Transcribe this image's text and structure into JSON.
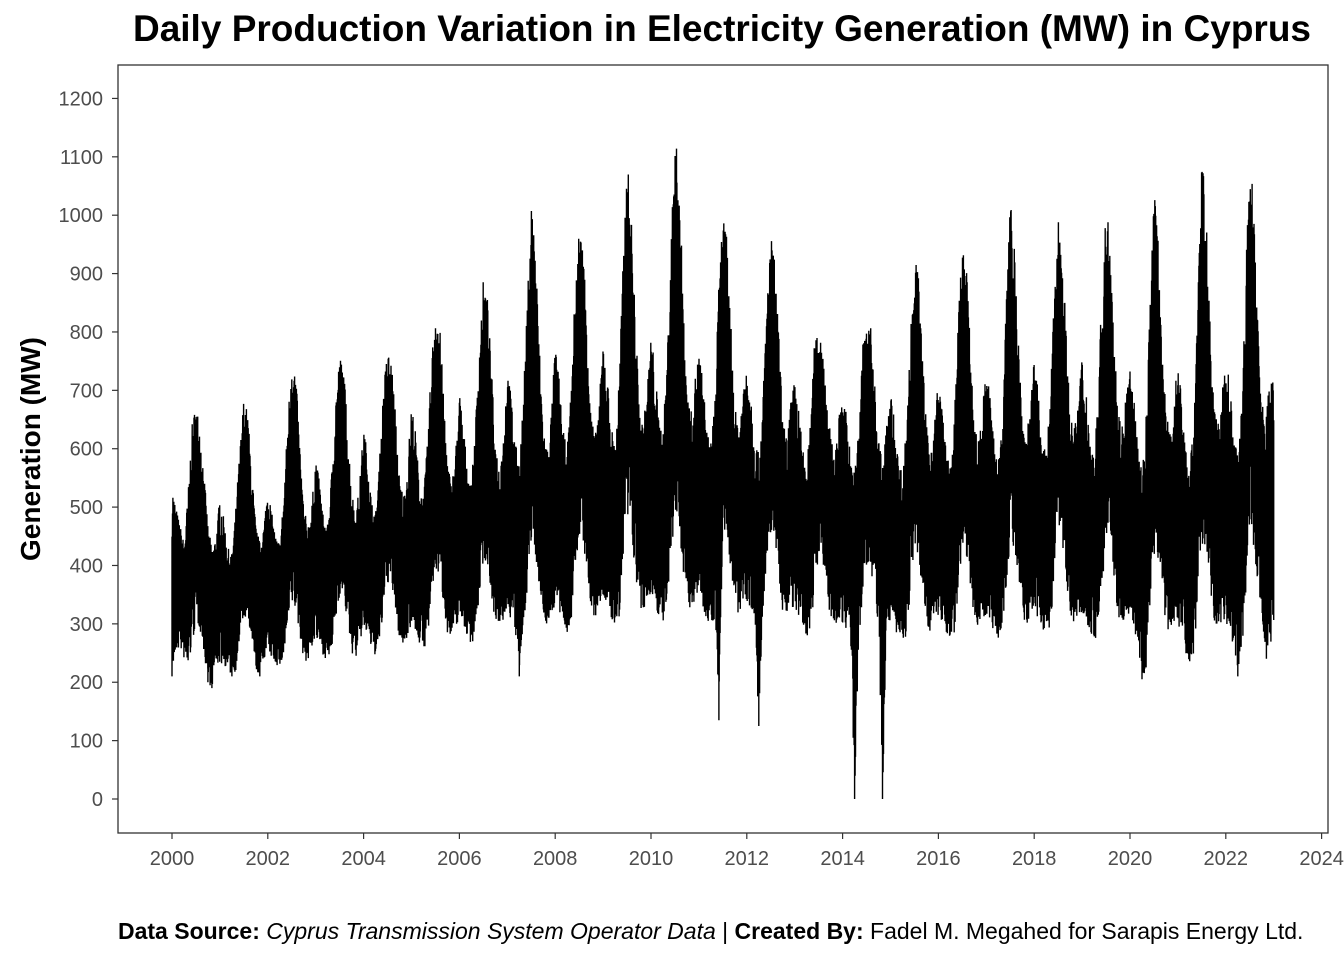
{
  "chart_data": {
    "type": "line",
    "title": "Daily Production Variation in Electricity Generation (MW) in Cyprus",
    "xlabel": "",
    "ylabel": "Generation (MW)",
    "xlim": [
      2000,
      2024
    ],
    "ylim": [
      -55,
      1260
    ],
    "x_ticks": [
      "2000",
      "2002",
      "2004",
      "2006",
      "2008",
      "2010",
      "2012",
      "2014",
      "2016",
      "2018",
      "2020",
      "2022",
      "2024"
    ],
    "y_ticks": [
      "0",
      "100",
      "200",
      "300",
      "400",
      "500",
      "600",
      "700",
      "800",
      "900",
      "1000",
      "1100",
      "1200"
    ],
    "series_color": "#000000",
    "data_start_year": 2000.0,
    "data_end_year": 2023.0,
    "series": [
      {
        "resolution": "monthly envelope",
        "x": [
          2000.0,
          2000.083,
          2000.167,
          2000.25,
          2000.333,
          2000.417,
          2000.5,
          2000.583,
          2000.667,
          2000.75,
          2000.833,
          2000.917,
          2001.0,
          2001.083,
          2001.167,
          2001.25,
          2001.333,
          2001.417,
          2001.5,
          2001.583,
          2001.667,
          2001.75,
          2001.833,
          2001.917,
          2002.0,
          2002.083,
          2002.167,
          2002.25,
          2002.333,
          2002.417,
          2002.5,
          2002.583,
          2002.667,
          2002.75,
          2002.833,
          2002.917,
          2003.0,
          2003.083,
          2003.167,
          2003.25,
          2003.333,
          2003.417,
          2003.5,
          2003.583,
          2003.667,
          2003.75,
          2003.833,
          2003.917,
          2004.0,
          2004.083,
          2004.167,
          2004.25,
          2004.333,
          2004.417,
          2004.5,
          2004.583,
          2004.667,
          2004.75,
          2004.833,
          2004.917,
          2005.0,
          2005.083,
          2005.167,
          2005.25,
          2005.333,
          2005.417,
          2005.5,
          2005.583,
          2005.667,
          2005.75,
          2005.833,
          2005.917,
          2006.0,
          2006.083,
          2006.167,
          2006.25,
          2006.333,
          2006.417,
          2006.5,
          2006.583,
          2006.667,
          2006.75,
          2006.833,
          2006.917,
          2007.0,
          2007.083,
          2007.167,
          2007.25,
          2007.333,
          2007.417,
          2007.5,
          2007.583,
          2007.667,
          2007.75,
          2007.833,
          2007.917,
          2008.0,
          2008.083,
          2008.167,
          2008.25,
          2008.333,
          2008.417,
          2008.5,
          2008.583,
          2008.667,
          2008.75,
          2008.833,
          2008.917,
          2009.0,
          2009.083,
          2009.167,
          2009.25,
          2009.333,
          2009.417,
          2009.5,
          2009.583,
          2009.667,
          2009.75,
          2009.833,
          2009.917,
          2010.0,
          2010.083,
          2010.167,
          2010.25,
          2010.333,
          2010.417,
          2010.5,
          2010.583,
          2010.667,
          2010.75,
          2010.833,
          2010.917,
          2011.0,
          2011.083,
          2011.167,
          2011.25,
          2011.333,
          2011.417,
          2011.5,
          2011.583,
          2011.667,
          2011.75,
          2011.833,
          2011.917,
          2012.0,
          2012.083,
          2012.167,
          2012.25,
          2012.333,
          2012.417,
          2012.5,
          2012.583,
          2012.667,
          2012.75,
          2012.833,
          2012.917,
          2013.0,
          2013.083,
          2013.167,
          2013.25,
          2013.333,
          2013.417,
          2013.5,
          2013.583,
          2013.667,
          2013.75,
          2013.833,
          2013.917,
          2014.0,
          2014.083,
          2014.167,
          2014.25,
          2014.333,
          2014.417,
          2014.5,
          2014.583,
          2014.667,
          2014.75,
          2014.833,
          2014.917,
          2015.0,
          2015.083,
          2015.167,
          2015.25,
          2015.333,
          2015.417,
          2015.5,
          2015.583,
          2015.667,
          2015.75,
          2015.833,
          2015.917,
          2016.0,
          2016.083,
          2016.167,
          2016.25,
          2016.333,
          2016.417,
          2016.5,
          2016.583,
          2016.667,
          2016.75,
          2016.833,
          2016.917,
          2017.0,
          2017.083,
          2017.167,
          2017.25,
          2017.333,
          2017.417,
          2017.5,
          2017.583,
          2017.667,
          2017.75,
          2017.833,
          2017.917,
          2018.0,
          2018.083,
          2018.167,
          2018.25,
          2018.333,
          2018.417,
          2018.5,
          2018.583,
          2018.667,
          2018.75,
          2018.833,
          2018.917,
          2019.0,
          2019.083,
          2019.167,
          2019.25,
          2019.333,
          2019.417,
          2019.5,
          2019.583,
          2019.667,
          2019.75,
          2019.833,
          2019.917,
          2020.0,
          2020.083,
          2020.167,
          2020.25,
          2020.333,
          2020.417,
          2020.5,
          2020.583,
          2020.667,
          2020.75,
          2020.833,
          2020.917,
          2021.0,
          2021.083,
          2021.167,
          2021.25,
          2021.333,
          2021.417,
          2021.5,
          2021.583,
          2021.667,
          2021.75,
          2021.833,
          2021.917,
          2022.0,
          2022.083,
          2022.167,
          2022.25,
          2022.333,
          2022.417,
          2022.5,
          2022.583,
          2022.667,
          2022.75,
          2022.833,
          2022.917,
          2023.0
        ],
        "max": [
          540,
          500,
          470,
          440,
          520,
          640,
          680,
          640,
          560,
          470,
          430,
          450,
          520,
          480,
          430,
          420,
          500,
          600,
          690,
          660,
          560,
          470,
          440,
          470,
          540,
          490,
          450,
          440,
          520,
          650,
          770,
          730,
          610,
          500,
          470,
          500,
          590,
          540,
          480,
          470,
          560,
          690,
          760,
          740,
          640,
          530,
          490,
          540,
          640,
          590,
          510,
          490,
          580,
          710,
          770,
          750,
          660,
          550,
          520,
          570,
          680,
          630,
          540,
          520,
          610,
          750,
          850,
          820,
          700,
          580,
          540,
          590,
          700,
          640,
          570,
          540,
          640,
          780,
          890,
          860,
          740,
          610,
          570,
          620,
          740,
          690,
          610,
          580,
          680,
          850,
          1030,
          960,
          780,
          640,
          600,
          660,
          780,
          720,
          630,
          600,
          700,
          880,
          980,
          950,
          820,
          660,
          620,
          680,
          790,
          730,
          640,
          610,
          720,
          920,
          1100,
          1010,
          840,
          680,
          640,
          700,
          800,
          740,
          650,
          630,
          750,
          960,
          1140,
          1080,
          880,
          700,
          660,
          720,
          770,
          720,
          630,
          610,
          700,
          880,
          1010,
          960,
          820,
          670,
          640,
          700,
          760,
          700,
          620,
          590,
          680,
          850,
          970,
          920,
          800,
          650,
          620,
          680,
          720,
          670,
          600,
          570,
          650,
          790,
          810,
          780,
          700,
          620,
          590,
          650,
          700,
          660,
          590,
          560,
          640,
          780,
          830,
          810,
          720,
          620,
          580,
          640,
          700,
          650,
          580,
          560,
          640,
          800,
          930,
          900,
          760,
          640,
          600,
          650,
          720,
          670,
          590,
          570,
          650,
          830,
          960,
          920,
          770,
          650,
          610,
          670,
          740,
          690,
          610,
          580,
          670,
          860,
          1020,
          980,
          800,
          660,
          620,
          680,
          750,
          700,
          620,
          590,
          680,
          870,
          1000,
          960,
          800,
          660,
          630,
          690,
          760,
          710,
          620,
          590,
          690,
          880,
          1010,
          980,
          810,
          670,
          640,
          700,
          740,
          690,
          600,
          560,
          650,
          850,
          1040,
          980,
          800,
          660,
          630,
          690,
          750,
          700,
          600,
          570,
          660,
          870,
          1100,
          1020,
          820,
          670,
          640,
          700,
          760,
          710,
          620,
          590,
          680,
          900,
          1110,
          1030,
          830,
          680,
          660,
          720,
          740
        ],
        "min": [
          210,
          250,
          260,
          240,
          220,
          260,
          300,
          290,
          250,
          200,
          190,
          230,
          230,
          230,
          220,
          210,
          220,
          270,
          310,
          300,
          260,
          220,
          210,
          240,
          250,
          240,
          230,
          225,
          240,
          290,
          330,
          320,
          280,
          240,
          230,
          260,
          270,
          260,
          245,
          235,
          250,
          300,
          350,
          340,
          300,
          250,
          240,
          265,
          290,
          275,
          255,
          245,
          260,
          320,
          370,
          360,
          320,
          270,
          260,
          280,
          300,
          285,
          265,
          255,
          270,
          335,
          390,
          380,
          335,
          285,
          270,
          290,
          310,
          300,
          275,
          265,
          280,
          345,
          410,
          400,
          350,
          300,
          285,
          305,
          320,
          305,
          285,
          210,
          290,
          360,
          430,
          420,
          365,
          310,
          295,
          315,
          330,
          315,
          295,
          285,
          300,
          380,
          450,
          440,
          380,
          320,
          305,
          330,
          345,
          330,
          305,
          295,
          310,
          395,
          470,
          455,
          390,
          330,
          310,
          340,
          350,
          335,
          310,
          300,
          315,
          400,
          475,
          460,
          395,
          335,
          315,
          345,
          345,
          330,
          305,
          295,
          310,
          135,
          465,
          450,
          385,
          330,
          310,
          340,
          340,
          325,
          300,
          125,
          305,
          390,
          455,
          440,
          380,
          320,
          300,
          335,
          320,
          305,
          285,
          275,
          290,
          360,
          420,
          410,
          360,
          305,
          285,
          310,
          300,
          290,
          270,
          0,
          255,
          340,
          400,
          390,
          345,
          290,
          0,
          295,
          300,
          290,
          275,
          265,
          280,
          350,
          420,
          410,
          360,
          305,
          285,
          305,
          310,
          300,
          280,
          270,
          285,
          360,
          430,
          420,
          365,
          310,
          290,
          310,
          315,
          300,
          285,
          275,
          290,
          365,
          440,
          425,
          370,
          315,
          295,
          315,
          320,
          305,
          290,
          280,
          295,
          370,
          445,
          430,
          375,
          320,
          300,
          320,
          320,
          305,
          285,
          260,
          290,
          365,
          440,
          425,
          370,
          315,
          295,
          320,
          310,
          290,
          260,
          205,
          220,
          320,
          420,
          410,
          355,
          300,
          275,
          300,
          300,
          280,
          250,
          235,
          250,
          340,
          440,
          425,
          365,
          305,
          285,
          305,
          300,
          285,
          260,
          210,
          250,
          345,
          450,
          430,
          370,
          310,
          230,
          260,
          250
        ]
      }
    ]
  },
  "caption": {
    "source_label": "Data Source: ",
    "source_value": "Cyprus Transmission System Operator Data",
    "separator": " | ",
    "created_label": "Created By:",
    "created_value": " Fadel M. Megahed for Sarapis Energy Ltd."
  }
}
